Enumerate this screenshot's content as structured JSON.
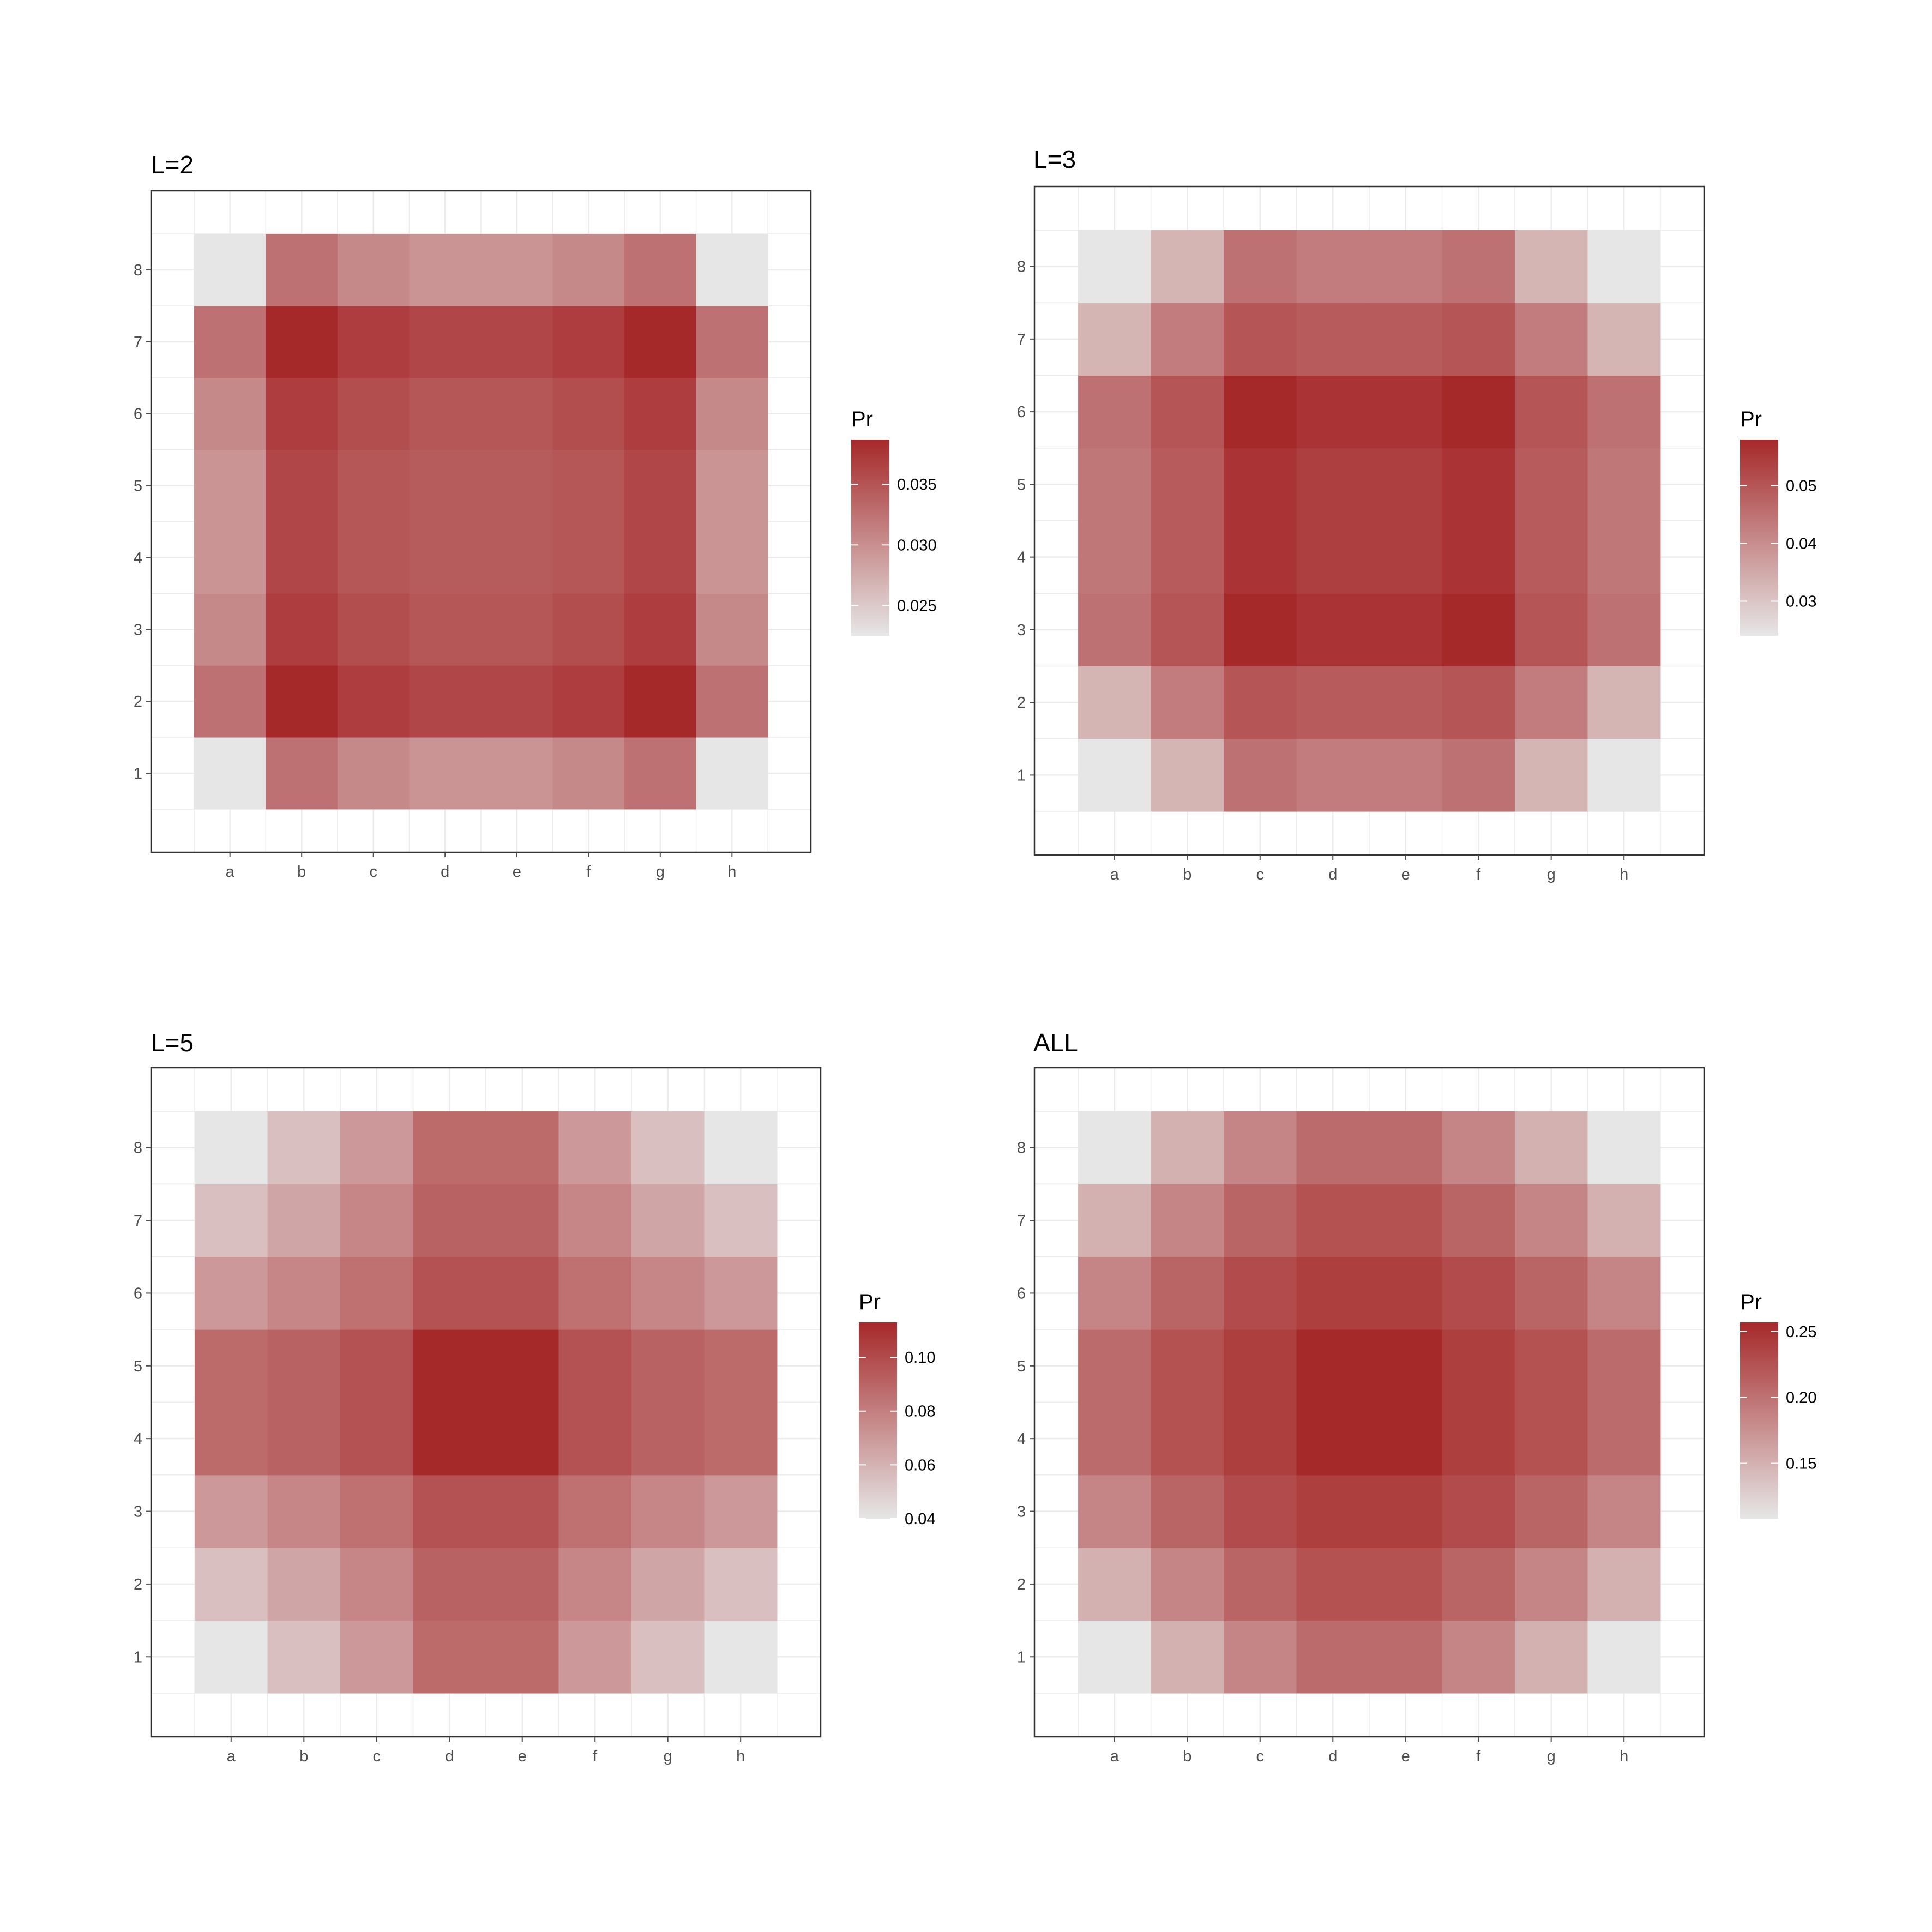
{
  "chart_data": [
    {
      "type": "heatmap",
      "title": "L=2",
      "x_categories": [
        "a",
        "b",
        "c",
        "d",
        "e",
        "f",
        "g",
        "h"
      ],
      "y_categories": [
        "1",
        "2",
        "3",
        "4",
        "5",
        "6",
        "7",
        "8"
      ],
      "legend": {
        "title": "Pr",
        "breaks": [
          0.025,
          0.03,
          0.035
        ],
        "break_labels": [
          "0.025",
          "0.030",
          "0.035"
        ],
        "range": [
          0.0225,
          0.0387
        ],
        "placement": "right"
      },
      "values": [
        [
          0.0225,
          0.0325,
          0.0305,
          0.0295,
          0.0295,
          0.0305,
          0.0325,
          0.0225
        ],
        [
          0.0325,
          0.0387,
          0.037,
          0.0362,
          0.0362,
          0.037,
          0.0387,
          0.0325
        ],
        [
          0.0305,
          0.037,
          0.0355,
          0.0348,
          0.0348,
          0.0355,
          0.037,
          0.0305
        ],
        [
          0.0295,
          0.0362,
          0.0348,
          0.0343,
          0.0343,
          0.0348,
          0.0362,
          0.0295
        ],
        [
          0.0295,
          0.0362,
          0.0348,
          0.0343,
          0.0343,
          0.0348,
          0.0362,
          0.0295
        ],
        [
          0.0305,
          0.037,
          0.0355,
          0.0348,
          0.0348,
          0.0355,
          0.037,
          0.0305
        ],
        [
          0.0325,
          0.0387,
          0.037,
          0.0362,
          0.0362,
          0.037,
          0.0387,
          0.0325
        ],
        [
          0.0225,
          0.0325,
          0.0305,
          0.0295,
          0.0295,
          0.0305,
          0.0325,
          0.0225
        ]
      ],
      "grid": true
    },
    {
      "type": "heatmap",
      "title": "L=3",
      "x_categories": [
        "a",
        "b",
        "c",
        "d",
        "e",
        "f",
        "g",
        "h"
      ],
      "y_categories": [
        "1",
        "2",
        "3",
        "4",
        "5",
        "6",
        "7",
        "8"
      ],
      "legend": {
        "title": "Pr",
        "breaks": [
          0.03,
          0.04,
          0.05
        ],
        "break_labels": [
          "0.03",
          "0.04",
          "0.05"
        ],
        "range": [
          0.024,
          0.058
        ],
        "placement": "right"
      },
      "values": [
        [
          0.024,
          0.033,
          0.045,
          0.043,
          0.043,
          0.045,
          0.033,
          0.024
        ],
        [
          0.033,
          0.043,
          0.05,
          0.049,
          0.049,
          0.05,
          0.043,
          0.033
        ],
        [
          0.045,
          0.05,
          0.058,
          0.056,
          0.056,
          0.058,
          0.05,
          0.045
        ],
        [
          0.044,
          0.049,
          0.056,
          0.054,
          0.054,
          0.056,
          0.049,
          0.044
        ],
        [
          0.044,
          0.049,
          0.056,
          0.054,
          0.054,
          0.056,
          0.049,
          0.044
        ],
        [
          0.045,
          0.05,
          0.058,
          0.056,
          0.056,
          0.058,
          0.05,
          0.045
        ],
        [
          0.033,
          0.043,
          0.05,
          0.049,
          0.049,
          0.05,
          0.043,
          0.033
        ],
        [
          0.024,
          0.033,
          0.045,
          0.043,
          0.043,
          0.045,
          0.033,
          0.024
        ]
      ],
      "grid": true
    },
    {
      "type": "heatmap",
      "title": "L=5",
      "x_categories": [
        "a",
        "b",
        "c",
        "d",
        "e",
        "f",
        "g",
        "h"
      ],
      "y_categories": [
        "1",
        "2",
        "3",
        "4",
        "5",
        "6",
        "7",
        "8"
      ],
      "legend": {
        "title": "Pr",
        "breaks": [
          0.04,
          0.06,
          0.08,
          0.1
        ],
        "break_labels": [
          "0.04",
          "0.06",
          "0.08",
          "0.10"
        ],
        "range": [
          0.04,
          0.113
        ],
        "placement": "right"
      },
      "values": [
        [
          0.04,
          0.055,
          0.07,
          0.088,
          0.088,
          0.07,
          0.055,
          0.04
        ],
        [
          0.055,
          0.065,
          0.077,
          0.091,
          0.091,
          0.077,
          0.065,
          0.055
        ],
        [
          0.07,
          0.077,
          0.085,
          0.097,
          0.097,
          0.085,
          0.077,
          0.07
        ],
        [
          0.088,
          0.091,
          0.097,
          0.113,
          0.113,
          0.097,
          0.091,
          0.088
        ],
        [
          0.088,
          0.091,
          0.097,
          0.113,
          0.113,
          0.097,
          0.091,
          0.088
        ],
        [
          0.07,
          0.077,
          0.085,
          0.097,
          0.097,
          0.085,
          0.077,
          0.07
        ],
        [
          0.055,
          0.065,
          0.077,
          0.091,
          0.091,
          0.077,
          0.065,
          0.055
        ],
        [
          0.04,
          0.055,
          0.07,
          0.088,
          0.088,
          0.07,
          0.055,
          0.04
        ]
      ],
      "grid": true
    },
    {
      "type": "heatmap",
      "title": "ALL",
      "x_categories": [
        "a",
        "b",
        "c",
        "d",
        "e",
        "f",
        "g",
        "h"
      ],
      "y_categories": [
        "1",
        "2",
        "3",
        "4",
        "5",
        "6",
        "7",
        "8"
      ],
      "legend": {
        "title": "Pr",
        "breaks": [
          0.15,
          0.2,
          0.25
        ],
        "break_labels": [
          "0.15",
          "0.20",
          "0.25"
        ],
        "range": [
          0.108,
          0.257
        ],
        "placement": "right"
      },
      "values": [
        [
          0.108,
          0.15,
          0.185,
          0.205,
          0.205,
          0.185,
          0.15,
          0.108
        ],
        [
          0.15,
          0.185,
          0.21,
          0.225,
          0.225,
          0.21,
          0.185,
          0.15
        ],
        [
          0.185,
          0.21,
          0.23,
          0.24,
          0.24,
          0.23,
          0.21,
          0.185
        ],
        [
          0.205,
          0.225,
          0.24,
          0.257,
          0.257,
          0.24,
          0.225,
          0.205
        ],
        [
          0.205,
          0.225,
          0.24,
          0.257,
          0.257,
          0.24,
          0.225,
          0.205
        ],
        [
          0.185,
          0.21,
          0.23,
          0.24,
          0.24,
          0.23,
          0.21,
          0.185
        ],
        [
          0.15,
          0.185,
          0.21,
          0.225,
          0.225,
          0.21,
          0.185,
          0.15
        ],
        [
          0.108,
          0.15,
          0.185,
          0.205,
          0.205,
          0.185,
          0.15,
          0.108
        ]
      ],
      "grid": true
    }
  ],
  "colors": {
    "low": "#e6e6e6",
    "high": "#a6292a",
    "panel_border": "#333333",
    "grid": "#ebebeb",
    "tick": "#4d4d4d"
  }
}
